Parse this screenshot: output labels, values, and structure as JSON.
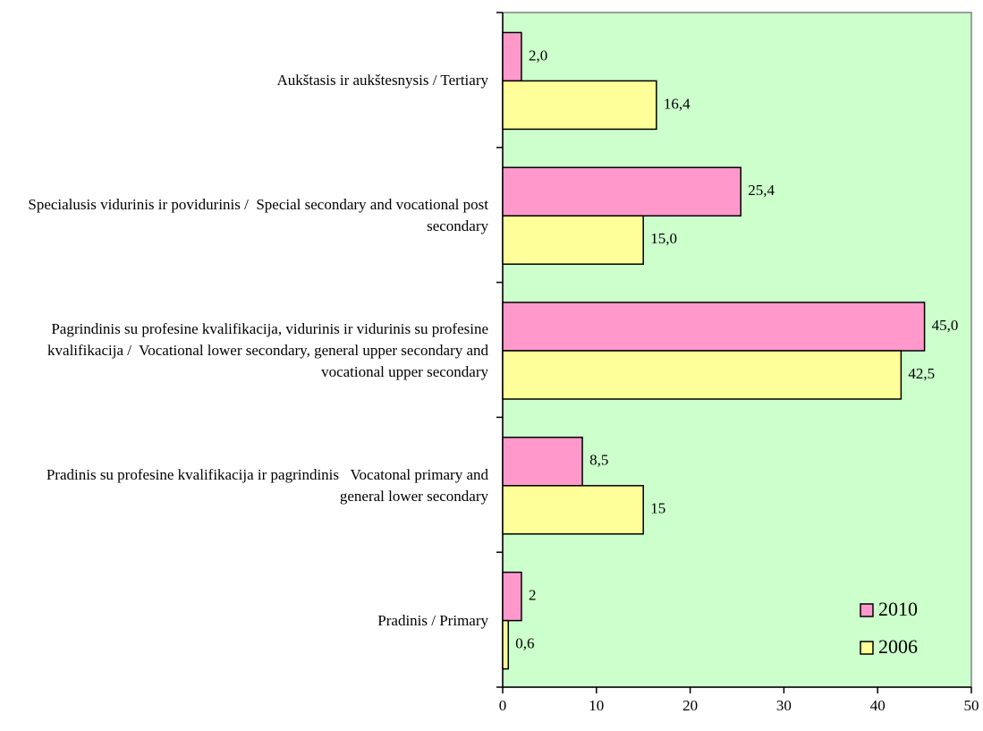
{
  "chart_data": {
    "type": "hbar",
    "categories": [
      "Aukštasis ir aukštesnysis / Tertiary",
      "Specialusis vidurinis ir povidurinis /  Special secondary and vocational post secondary",
      "Pagrindinis su profesine kvalifikacija, vidurinis ir vidurinis su profesine kvalifikacija /  Vocational lower secondary, general upper secondary and vocational upper secondary",
      "Pradinis su profesine kvalifikacija ir pagrindinis   Vocatonal primary and general lower secondary",
      "Pradinis / Primary"
    ],
    "series": [
      {
        "name": "2010",
        "color": "#ff99cc",
        "values": [
          2.0,
          25.4,
          45.0,
          8.5,
          2
        ],
        "value_labels": [
          "2,0",
          "25,4",
          "45,0",
          "8,5",
          "2"
        ]
      },
      {
        "name": "2006",
        "color": "#ffff99",
        "values": [
          16.4,
          15.0,
          42.5,
          15,
          0.6
        ],
        "value_labels": [
          "16,4",
          "15,0",
          "42,5",
          "15",
          "0,6"
        ]
      }
    ],
    "xlim": [
      0,
      50
    ],
    "xticks": [
      0,
      10,
      20,
      30,
      40,
      50
    ],
    "background": "#ccffcc",
    "legend": "lower right"
  }
}
